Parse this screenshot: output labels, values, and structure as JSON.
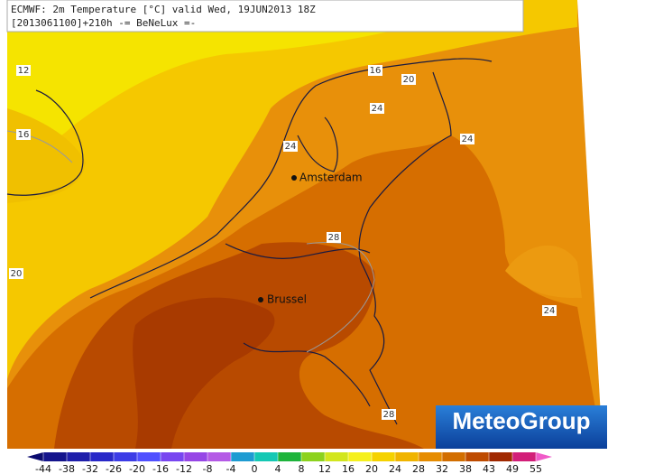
{
  "header": {
    "line1": "ECMWF: 2m Temperature [°C] valid Wed, 19JUN2013 18Z",
    "line2": "[2013061100]+210h -= BeNeLux =-"
  },
  "map": {
    "contour_labels": [
      12,
      16,
      20,
      16,
      20,
      24,
      24,
      24,
      28,
      24,
      28
    ],
    "cities": [
      "Amsterdam",
      "Brussel"
    ]
  },
  "logo": "MeteoGroup",
  "colorbar": {
    "ticks": [
      -44,
      -38,
      -32,
      -26,
      -20,
      -16,
      -12,
      -8,
      -4,
      0,
      4,
      8,
      12,
      16,
      20,
      24,
      28,
      32,
      38,
      43,
      49,
      55
    ],
    "colors": [
      "#0a0a6e",
      "#14148c",
      "#1e1eaa",
      "#2828c8",
      "#3c3ce6",
      "#5050ff",
      "#7846f0",
      "#9646e6",
      "#b45ae6",
      "#1e9bd2",
      "#14c8b4",
      "#1eb43c",
      "#8cd21e",
      "#d2e61e",
      "#f5f01e",
      "#f5d200",
      "#f0b400",
      "#e68c00",
      "#d26e00",
      "#be4b00",
      "#a02800",
      "#d21e78",
      "#f05ac8"
    ]
  }
}
